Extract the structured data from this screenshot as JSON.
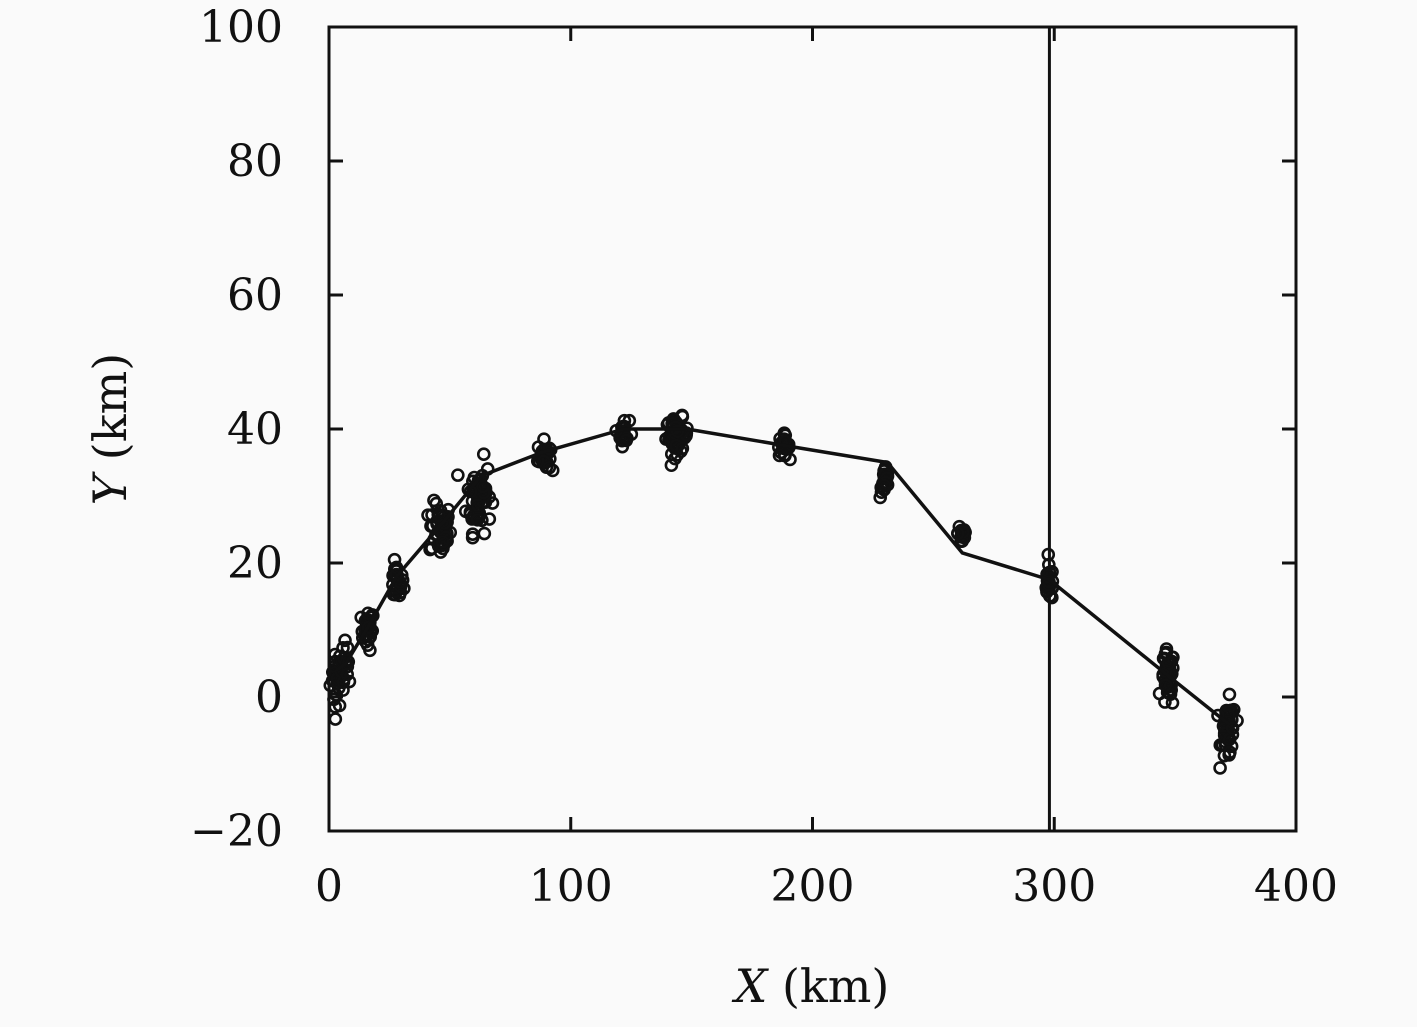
{
  "chart_data": {
    "type": "scatter",
    "xlabel": {
      "var": "X",
      "unit": " (km)"
    },
    "ylabel": {
      "var": "Y",
      "unit": " (km)"
    },
    "xlim": [
      0,
      400
    ],
    "ylim": [
      -20,
      100
    ],
    "xticks": [
      0,
      100,
      200,
      300,
      400
    ],
    "yticks": [
      -20,
      0,
      20,
      40,
      60,
      80,
      100
    ],
    "xtick_labels": [
      "0",
      "100",
      "200",
      "300",
      "400"
    ],
    "ytick_labels": [
      "−20",
      "0",
      "20",
      "40",
      "60",
      "80",
      "100"
    ],
    "grid": false,
    "legend": "none",
    "vertical_line_x": 298,
    "series": [
      {
        "type": "line",
        "x": [
          3,
          7,
          17,
          28,
          47,
          63,
          88,
          122,
          148,
          189,
          231,
          262,
          298,
          346,
          372
        ],
        "y": [
          4,
          5,
          11,
          18,
          26,
          33,
          36.5,
          40,
          40,
          37.5,
          35,
          21.5,
          17.5,
          3.5,
          -4
        ]
      },
      {
        "type": "scatter",
        "clusters": [
          {
            "x": 3,
            "y": 3,
            "sx": 1.2,
            "sy": 2.4,
            "n": 24
          },
          {
            "x": 7,
            "y": 4,
            "sx": 1.0,
            "sy": 2.2,
            "n": 16
          },
          {
            "x": 16,
            "y": 10,
            "sx": 1.3,
            "sy": 1.5,
            "n": 26
          },
          {
            "x": 28,
            "y": 17,
            "sx": 1.4,
            "sy": 1.4,
            "n": 26
          },
          {
            "x": 46,
            "y": 25,
            "sx": 2.2,
            "sy": 2.0,
            "n": 48
          },
          {
            "x": 62,
            "y": 30,
            "sx": 2.5,
            "sy": 2.7,
            "n": 55
          },
          {
            "x": 89,
            "y": 36,
            "sx": 1.3,
            "sy": 1.1,
            "n": 28
          },
          {
            "x": 122,
            "y": 39.5,
            "sx": 1.1,
            "sy": 1.0,
            "n": 22
          },
          {
            "x": 144,
            "y": 39,
            "sx": 2.3,
            "sy": 1.3,
            "n": 55
          },
          {
            "x": 188,
            "y": 37.5,
            "sx": 1.2,
            "sy": 0.8,
            "n": 22
          },
          {
            "x": 230,
            "y": 32,
            "sx": 1.0,
            "sy": 1.2,
            "n": 20
          },
          {
            "x": 262,
            "y": 24.5,
            "sx": 0.9,
            "sy": 1.1,
            "n": 18
          },
          {
            "x": 298,
            "y": 17,
            "sx": 1.1,
            "sy": 1.3,
            "n": 22
          },
          {
            "x": 347,
            "y": 2.5,
            "sx": 1.3,
            "sy": 2.2,
            "n": 40
          },
          {
            "x": 372,
            "y": -5,
            "sx": 1.5,
            "sy": 2.2,
            "n": 45
          }
        ]
      }
    ]
  }
}
